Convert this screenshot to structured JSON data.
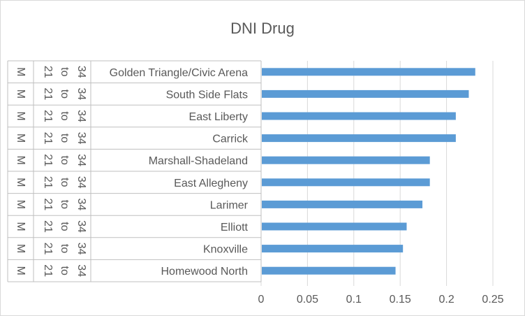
{
  "chart_data": {
    "type": "bar",
    "orientation": "horizontal",
    "title": "DNI Drug",
    "xlim": [
      0,
      0.25
    ],
    "x_ticks": [
      "0",
      "0.05",
      "0.1",
      "0.15",
      "0.2",
      "0.25"
    ],
    "grid": true,
    "bar_color": "#5b9bd5",
    "category_levels": [
      {
        "sex": "M",
        "age_from": "21",
        "age_to_word": "to",
        "age_to": "34",
        "neighborhood": "Golden Triangle/Civic Arena"
      },
      {
        "sex": "M",
        "age_from": "21",
        "age_to_word": "to",
        "age_to": "34",
        "neighborhood": "South Side Flats"
      },
      {
        "sex": "M",
        "age_from": "21",
        "age_to_word": "to",
        "age_to": "34",
        "neighborhood": "East Liberty"
      },
      {
        "sex": "M",
        "age_from": "21",
        "age_to_word": "to",
        "age_to": "34",
        "neighborhood": "Carrick"
      },
      {
        "sex": "M",
        "age_from": "21",
        "age_to_word": "to",
        "age_to": "34",
        "neighborhood": "Marshall-Shadeland"
      },
      {
        "sex": "M",
        "age_from": "21",
        "age_to_word": "to",
        "age_to": "34",
        "neighborhood": "East Allegheny"
      },
      {
        "sex": "M",
        "age_from": "21",
        "age_to_word": "to",
        "age_to": "34",
        "neighborhood": "Larimer"
      },
      {
        "sex": "M",
        "age_from": "21",
        "age_to_word": "to",
        "age_to": "34",
        "neighborhood": "Elliott"
      },
      {
        "sex": "M",
        "age_from": "21",
        "age_to_word": "to",
        "age_to": "34",
        "neighborhood": "Knoxville"
      },
      {
        "sex": "M",
        "age_from": "21",
        "age_to_word": "to",
        "age_to": "34",
        "neighborhood": "Homewood North"
      }
    ],
    "values": [
      0.231,
      0.224,
      0.21,
      0.21,
      0.182,
      0.182,
      0.174,
      0.157,
      0.153,
      0.145
    ]
  }
}
